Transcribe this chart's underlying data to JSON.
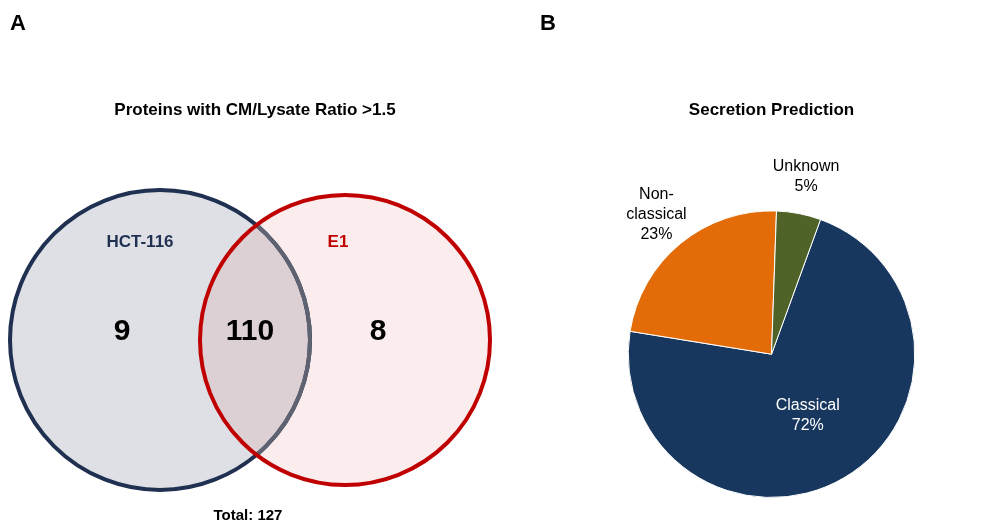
{
  "chart_data": [
    {
      "type": "other",
      "title": "Proteins with CM/Lysate Ratio >1.5",
      "categories": [
        "HCT-116",
        null,
        "E1"
      ],
      "values": [
        9,
        110,
        8
      ],
      "colors": [
        "#1f3050",
        "#5f6270",
        "#c00000"
      ],
      "data_labels": true,
      "annotations": [
        "A",
        "Total: 127"
      ]
    },
    {
      "type": "pie",
      "title": "Secretion Prediction",
      "categories": [
        "Classical",
        "Non-classical",
        "Unknown"
      ],
      "values": [
        72,
        23,
        5
      ],
      "colors": [
        "#17375e",
        "#e36c09",
        "#4f6228"
      ],
      "value_labels": [
        "72%",
        "23%",
        "5%"
      ],
      "legend": false,
      "annotations": [
        "B"
      ]
    }
  ]
}
